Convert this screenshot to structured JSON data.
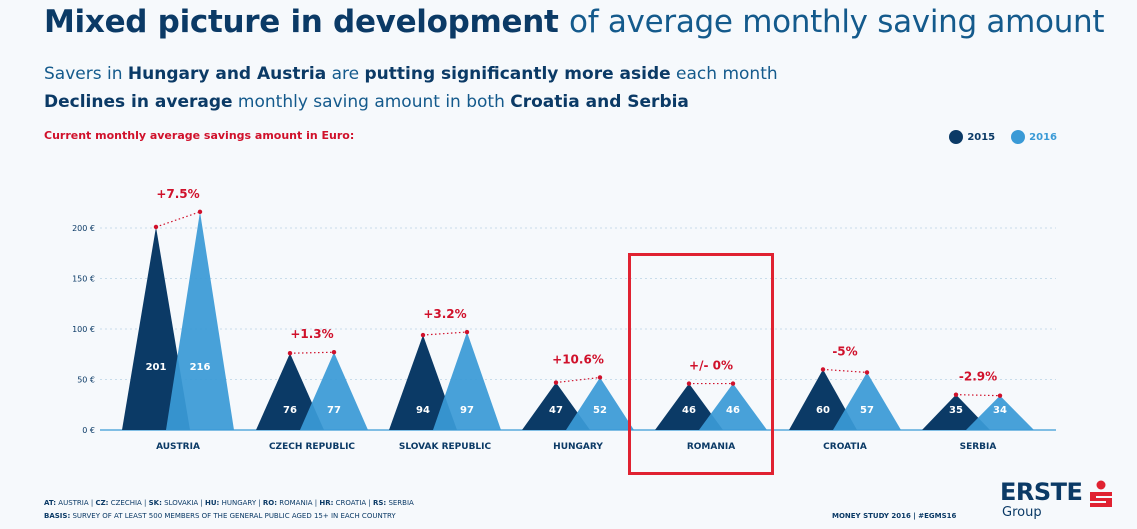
{
  "header": {
    "title_bold": "Mixed picture in development",
    "title_rest": "of average monthly saving amount",
    "subtitle_line1": {
      "a": "Savers in ",
      "b": "Hungary and Austria",
      "c": " are ",
      "d": "putting significantly more aside",
      "e": " each month"
    },
    "subtitle_line2": {
      "a": "Declines in average",
      "b": " monthly saving amount in both ",
      "c": "Croatia and Serbia"
    }
  },
  "chart_caption": "Current monthly average savings amount in Euro:",
  "legend": [
    {
      "label": "2015",
      "color": "#0b3a66"
    },
    {
      "label": "2016",
      "color": "#3a9ad6"
    }
  ],
  "colors": {
    "series_2015": "#0b3a66",
    "series_2016": "#3a9ad6",
    "change_label": "#d0112b",
    "highlight_box": "#e02231"
  },
  "chart_data": {
    "type": "bar",
    "ylim": [
      0,
      200
    ],
    "yticks": [
      0,
      50,
      100,
      150,
      200
    ],
    "ytick_labels": [
      "0 €",
      "50 €",
      "100 €",
      "150 €",
      "200 €"
    ],
    "categories": [
      "AUSTRIA",
      "CZECH REPUBLIC",
      "SLOVAK REPUBLIC",
      "HUNGARY",
      "ROMANIA",
      "CROATIA",
      "SERBIA"
    ],
    "series": [
      {
        "name": "2015",
        "values": [
          201,
          76,
          94,
          47,
          46,
          60,
          35
        ]
      },
      {
        "name": "2016",
        "values": [
          216,
          77,
          97,
          52,
          46,
          57,
          34
        ]
      }
    ],
    "changes": [
      "+7.5%",
      "+1.3%",
      "+3.2%",
      "+10.6%",
      "+/- 0%",
      "-5%",
      "-2.9%"
    ],
    "highlighted_category": "ROMANIA"
  },
  "footer": {
    "abbrev": [
      {
        "code": "AT:",
        "name": " AUSTRIA | "
      },
      {
        "code": "CZ:",
        "name": " CZECHIA | "
      },
      {
        "code": "SK:",
        "name": " SLOVAKIA | "
      },
      {
        "code": "HU:",
        "name": " HUNGARY | "
      },
      {
        "code": "RO:",
        "name": " ROMANIA | "
      },
      {
        "code": "HR:",
        "name": " CROATIA | "
      },
      {
        "code": "RS:",
        "name": " SERBIA"
      }
    ],
    "basis_label": "BASIS:",
    "basis_text": " SURVEY OF AT LEAST 500 MEMBERS OF THE GENERAL PUBLIC AGED 15+ IN EACH COUNTRY",
    "study": "MONEY STUDY 2016 | #EGMS16"
  },
  "logo": {
    "name": "ERSTE",
    "group": "Group"
  }
}
